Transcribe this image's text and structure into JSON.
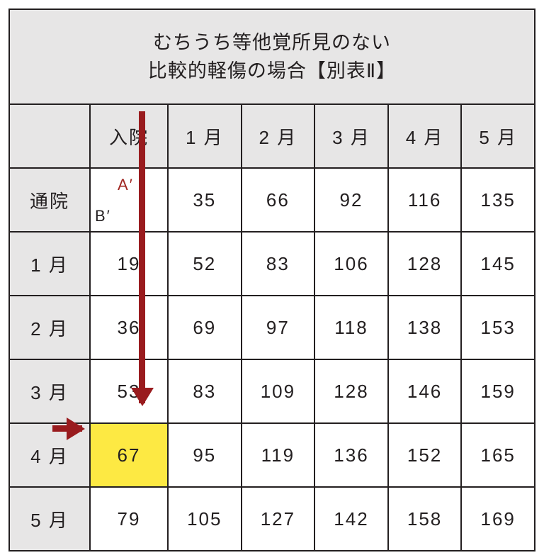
{
  "title_line1": "むちうち等他覚所見のない",
  "title_line2": "比較的軽傷の場合【別表Ⅱ】",
  "col_headers": [
    "入院",
    "1 月",
    "2 月",
    "3 月",
    "4 月",
    "5 月"
  ],
  "row_headers": [
    "通院",
    "1 月",
    "2 月",
    "3 月",
    "4 月",
    "5 月"
  ],
  "label_a": "A′",
  "label_b": "B′",
  "rows": [
    [
      "",
      "35",
      "66",
      "92",
      "116",
      "135"
    ],
    [
      "19",
      "52",
      "83",
      "106",
      "128",
      "145"
    ],
    [
      "36",
      "69",
      "97",
      "118",
      "138",
      "153"
    ],
    [
      "53",
      "83",
      "109",
      "128",
      "146",
      "159"
    ],
    [
      "67",
      "95",
      "119",
      "136",
      "152",
      "165"
    ],
    [
      "79",
      "105",
      "127",
      "142",
      "158",
      "169"
    ]
  ],
  "highlight": {
    "row": 4,
    "col": 0
  },
  "colors": {
    "header_bg": "#e7e6e6",
    "highlight_bg": "#fde943",
    "arrow": "#991b1e",
    "border": "#231f20",
    "label_a_color": "#a12722"
  }
}
